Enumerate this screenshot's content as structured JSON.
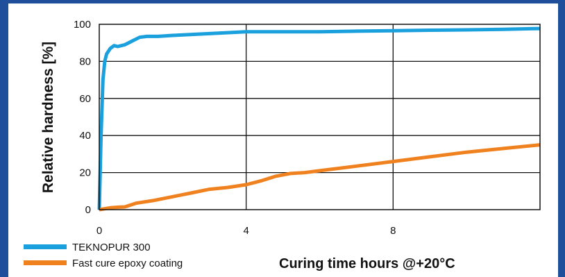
{
  "chart_data": {
    "type": "line",
    "xlabel": "Curing time hours @+20°C",
    "ylabel": "Relative hardness [%]",
    "xlim": [
      0,
      12
    ],
    "ylim": [
      0,
      100
    ],
    "xticks": [
      0,
      4,
      8
    ],
    "yticks": [
      0,
      20,
      40,
      60,
      80,
      100
    ],
    "grid": "horizontal lines every 20, vertical line at 4",
    "legend_position": "bottom-left",
    "series": [
      {
        "name": "TEKNOPUR 300",
        "color": "#1aa0dc",
        "x": [
          0,
          0.05,
          0.1,
          0.15,
          0.2,
          0.3,
          0.4,
          0.5,
          0.7,
          0.9,
          1.1,
          1.3,
          1.6,
          2,
          3,
          4,
          5,
          6,
          7,
          8,
          9,
          10,
          11,
          12
        ],
        "y": [
          0,
          40,
          70,
          80,
          84,
          87,
          88.5,
          88,
          89,
          91,
          93,
          93.5,
          93.5,
          94,
          95,
          96,
          96,
          96,
          96.3,
          96.5,
          96.8,
          97,
          97.3,
          97.7
        ]
      },
      {
        "name": "Fast cure epoxy coating",
        "color": "#f0811f",
        "x": [
          0,
          0.3,
          0.5,
          0.7,
          1,
          1.5,
          2,
          2.5,
          3,
          3.5,
          4,
          4.4,
          4.8,
          5.2,
          5.6,
          6,
          7,
          8,
          9,
          10,
          11,
          12
        ],
        "y": [
          0,
          1,
          1.3,
          1.5,
          3.5,
          5,
          7,
          9,
          11,
          12,
          13.5,
          15.5,
          18,
          19.5,
          20,
          21,
          23.5,
          26,
          28.5,
          31,
          33,
          35
        ]
      }
    ]
  }
}
